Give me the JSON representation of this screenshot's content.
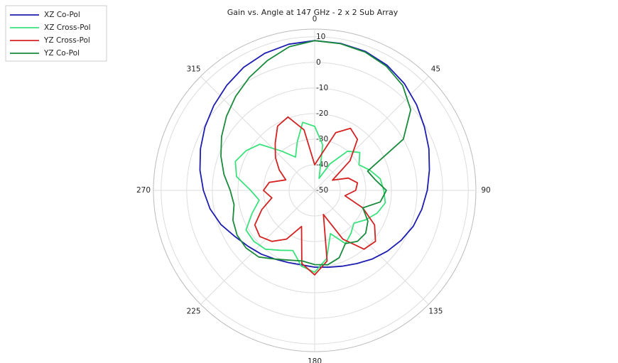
{
  "chart_data": {
    "type": "polar",
    "title": "Gain vs. Angle at 147 GHz - 2 x 2 Sub Array",
    "x": [
      0,
      10,
      20,
      30,
      40,
      50,
      60,
      70,
      80,
      90,
      100,
      110,
      120,
      130,
      140,
      150,
      160,
      170,
      180,
      190,
      200,
      210,
      220,
      230,
      240,
      250,
      260,
      270,
      280,
      290,
      300,
      310,
      320,
      330,
      340,
      350
    ],
    "rlim": [
      -50,
      13
    ],
    "rticks": [
      -50,
      -40,
      -30,
      -20,
      -10,
      0,
      10
    ],
    "angle_ticks": [
      0,
      45,
      90,
      135,
      180,
      225,
      270,
      315
    ],
    "grid": true,
    "legend": "top-left",
    "series": [
      {
        "name": "XZ Co-Pol",
        "color": "#1c1cb0",
        "values": [
          8.5,
          8.3,
          7.8,
          6.5,
          4.5,
          2,
          -0.5,
          -2.5,
          -4.5,
          -6,
          -7.5,
          -9,
          -11,
          -13,
          -15,
          -17,
          -18.5,
          -19.5,
          -20,
          -20.5,
          -20,
          -19,
          -17.5,
          -16,
          -14,
          -11,
          -8.5,
          -6.5,
          -4.5,
          -2.5,
          -0.5,
          1.5,
          3.5,
          5.5,
          7,
          8
        ]
      },
      {
        "name": "XZ Cross-Pol",
        "color": "#3ae27c",
        "values": [
          -25,
          -32,
          -45,
          -38,
          -30,
          -27,
          -30,
          -27,
          -24,
          -23,
          -22,
          -24,
          -27,
          -30,
          -28,
          -26,
          -32,
          -23,
          -18,
          -20,
          -25,
          -23,
          -20,
          -19,
          -19,
          -24,
          -28,
          -25,
          -19,
          -17,
          -19,
          -22,
          -30,
          -35,
          -30,
          -23
        ]
      },
      {
        "name": "YZ Cross-Pol",
        "color": "#d42222",
        "values": [
          -40,
          -36,
          -26,
          -22,
          -24,
          -32,
          -42,
          -36,
          -33,
          -34,
          -38,
          -30,
          -23,
          -19,
          -20,
          -28,
          -40,
          -22,
          -17,
          -21,
          -35,
          -28,
          -24,
          -22,
          -23,
          -28,
          -33,
          -30,
          -32,
          -38,
          -34,
          -30,
          -26,
          -21,
          -19.5,
          -26
        ]
      },
      {
        "name": "YZ Co-Pol",
        "color": "#1a8a3c",
        "values": [
          8.5,
          8.2,
          7.5,
          6,
          3.5,
          -1,
          -10,
          -28,
          -26,
          -22,
          -24,
          -30,
          -26,
          -24,
          -24,
          -26,
          -22,
          -20.5,
          -21,
          -22,
          -21,
          -19,
          -16,
          -15,
          -15,
          -16,
          -18,
          -17,
          -14,
          -11,
          -8,
          -5,
          -2,
          1,
          4,
          7
        ]
      }
    ]
  }
}
